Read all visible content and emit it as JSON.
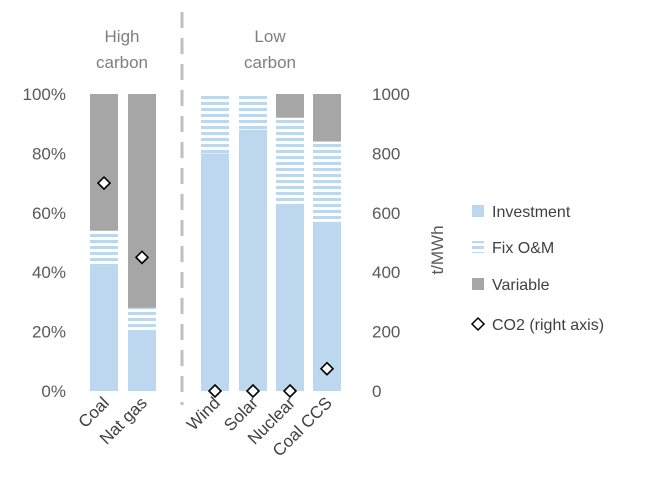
{
  "chart_data": {
    "type": "bar",
    "stacked": true,
    "percent_stacked": true,
    "categories": [
      "Coal",
      "Nat gas",
      "Wind",
      "Solar",
      "Nuclear",
      "Coal CCS"
    ],
    "groups": [
      {
        "label_lines": [
          "High",
          "carbon"
        ],
        "categories": [
          "Coal",
          "Nat gas"
        ]
      },
      {
        "label_lines": [
          "Low",
          "carbon"
        ],
        "categories": [
          "Wind",
          "Solar",
          "Nuclear",
          "Coal CCS"
        ]
      }
    ],
    "series": [
      {
        "name": "Investment",
        "values": [
          42,
          20,
          80,
          88,
          63,
          57
        ],
        "color": "#bdd7ee",
        "pattern": "solid"
      },
      {
        "name": "Fix O&M",
        "values": [
          12,
          8,
          20,
          12,
          29,
          27
        ],
        "color": "#bdd7ee",
        "pattern": "horizontal-stripes"
      },
      {
        "name": "Variable",
        "values": [
          46,
          72,
          0,
          0,
          8,
          16
        ],
        "color": "#a6a6a6",
        "pattern": "solid"
      }
    ],
    "co2_series": {
      "name": "CO2 (right axis)",
      "values": [
        700,
        450,
        0,
        0,
        0,
        75
      ],
      "marker": "diamond"
    },
    "y_left": {
      "ticks": [
        "0%",
        "20%",
        "40%",
        "60%",
        "80%",
        "100%"
      ],
      "ylim": [
        0,
        100
      ]
    },
    "y_right": {
      "label": "t/MWh",
      "ticks": [
        "0",
        "200",
        "400",
        "600",
        "800",
        "1000"
      ],
      "ylim": [
        0,
        1000
      ]
    },
    "separator": "dashed vertical line between Nat gas and Wind",
    "legend": {
      "placement": "right"
    },
    "grid": false
  }
}
